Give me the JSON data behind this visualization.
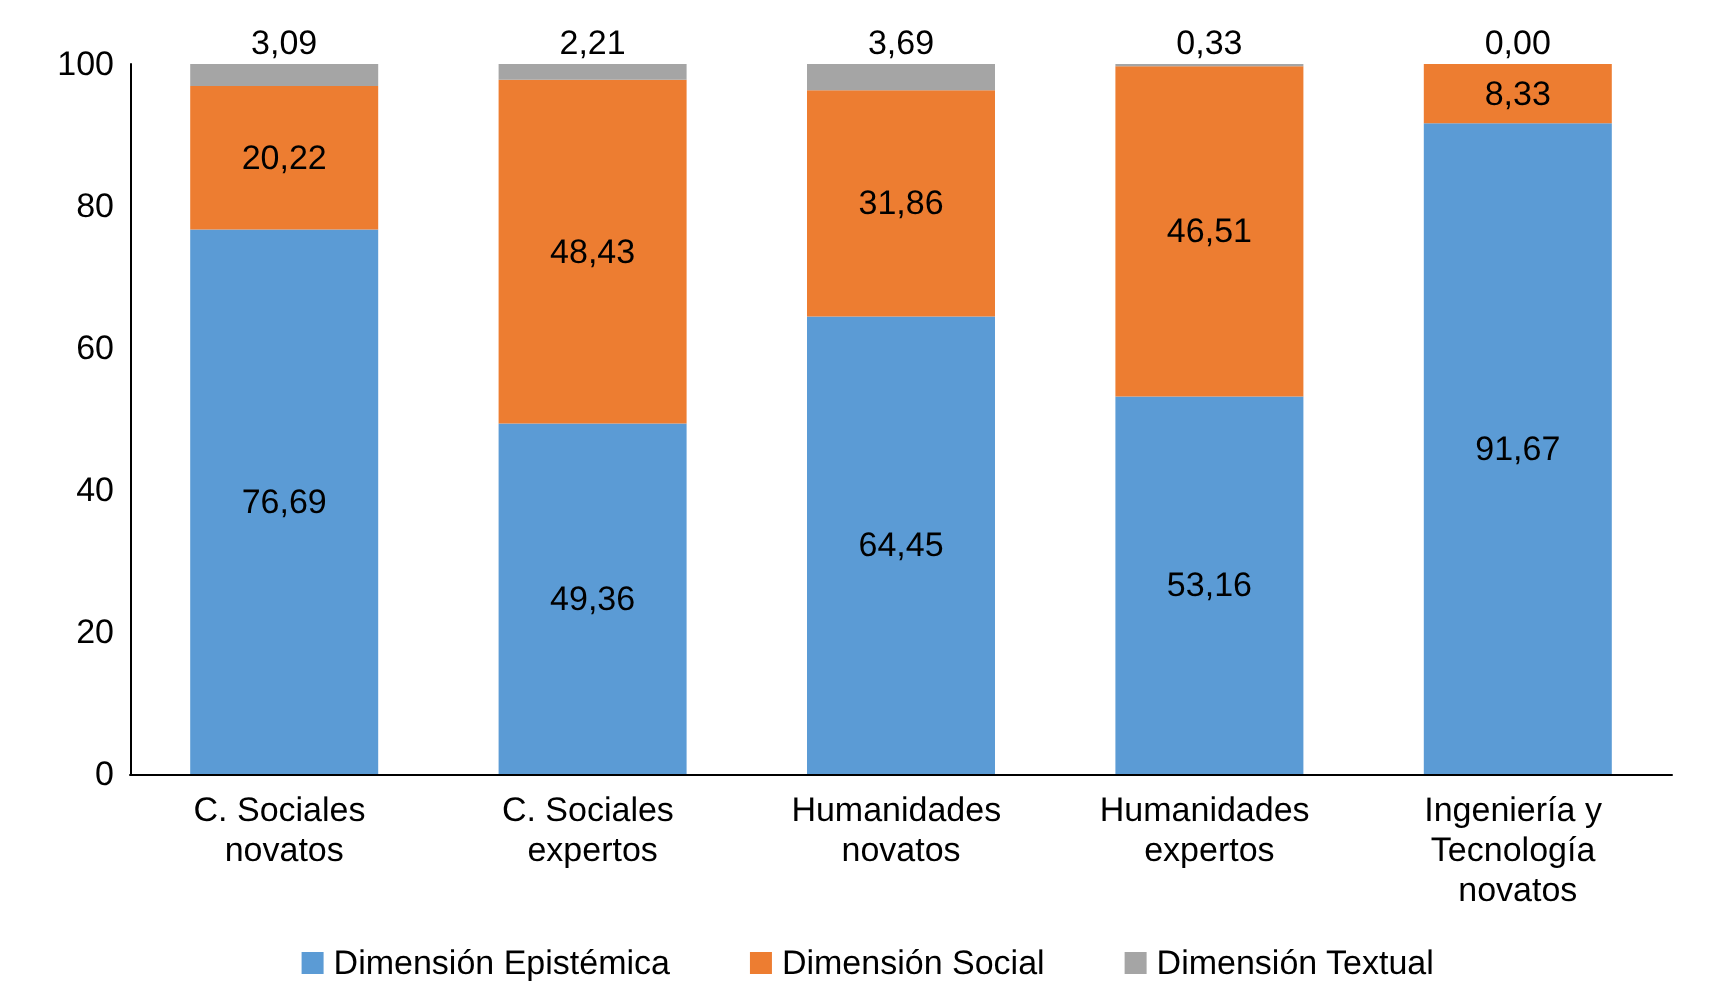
{
  "chart_data": {
    "type": "bar",
    "stacked": true,
    "categories": [
      "C. Sociales novatos",
      "C. Sociales expertos",
      "Humanidades novatos",
      "Humanidades expertos",
      "Ingeniería y Tecnología novatos"
    ],
    "series": [
      {
        "name": "Dimensión Epistémica",
        "color": "#5b9bd5",
        "values": [
          76.69,
          49.36,
          64.45,
          53.16,
          91.67
        ],
        "value_labels": [
          "76,69",
          "49,36",
          "64,45",
          "53,16",
          "91,67"
        ]
      },
      {
        "name": "Dimensión Social",
        "color": "#ed7d31",
        "values": [
          20.22,
          48.43,
          31.86,
          46.51,
          8.33
        ],
        "value_labels": [
          "20,22",
          "48,43",
          "31,86",
          "46,51",
          "8,33"
        ]
      },
      {
        "name": "Dimensión Textual",
        "color": "#a5a5a5",
        "values": [
          3.09,
          2.21,
          3.69,
          0.33,
          0.0
        ],
        "value_labels": [
          "3,09",
          "2,21",
          "3,69",
          "0,33",
          "0,00"
        ]
      }
    ],
    "ylim": [
      0,
      100
    ],
    "yticks": [
      0,
      20,
      40,
      60,
      80,
      100
    ],
    "grid": false,
    "legend": "bottom"
  }
}
